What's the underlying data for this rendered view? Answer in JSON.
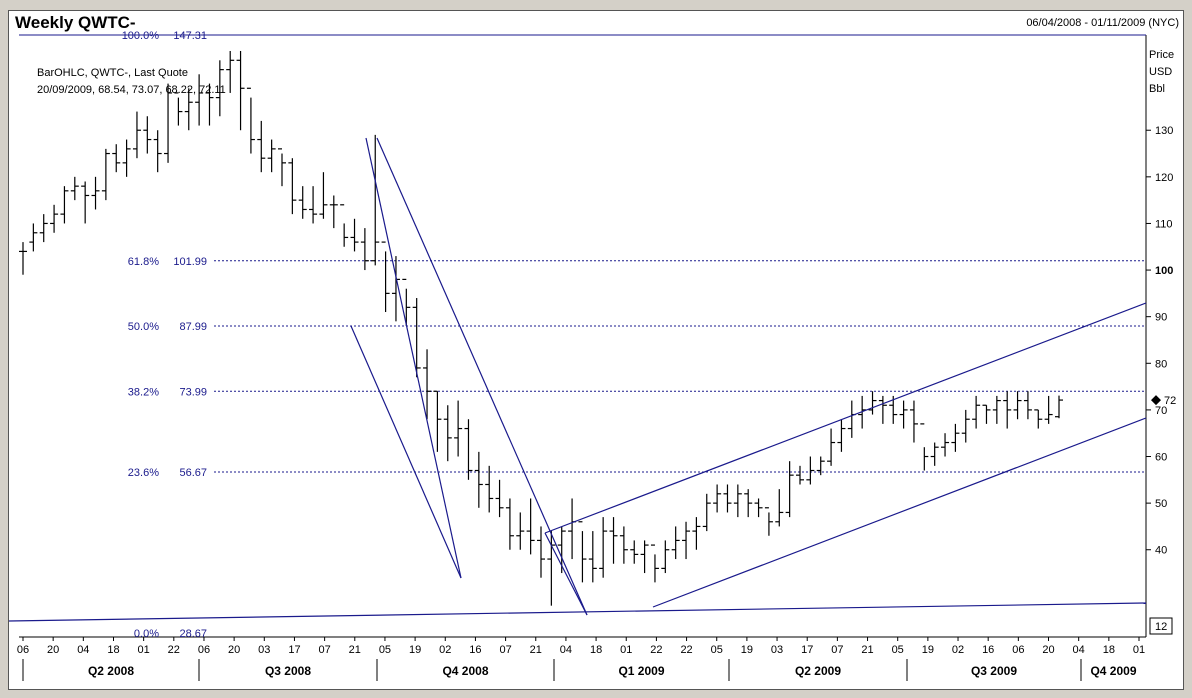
{
  "header": {
    "title": "Weekly QWTC-",
    "date_range": "06/04/2008 - 01/11/2009 (NYC)"
  },
  "legend": {
    "line1": "BarOHLC, QWTC-, Last Quote",
    "line2": "20/09/2009, 68.54, 73.07, 68.22, 72.11"
  },
  "axis": {
    "unit_line1": "Price",
    "unit_line2": "USD",
    "unit_line3": "Bbl",
    "last_price_label": "72",
    "bottom_box_label": "12"
  },
  "colors": {
    "lines": "#1a1a8c",
    "bars": "#000000",
    "background": "#ffffff",
    "frame": "#d4d0c8"
  },
  "chart_data": {
    "type": "ohlc",
    "ylim": [
      26,
      150
    ],
    "yticks": [
      40,
      50,
      60,
      70,
      80,
      90,
      100,
      110,
      120,
      130
    ],
    "ytick_bold": 100,
    "fib_levels": [
      {
        "pct": "100.0%",
        "value": "147.31"
      },
      {
        "pct": "61.8%",
        "value": "101.99"
      },
      {
        "pct": "50.0%",
        "value": "87.99"
      },
      {
        "pct": "38.2%",
        "value": "73.99"
      },
      {
        "pct": "23.6%",
        "value": "56.67"
      },
      {
        "pct": "0.0%",
        "value": "28.67"
      }
    ],
    "x_tick_labels": [
      "06",
      "20",
      "04",
      "18",
      "01",
      "22",
      "06",
      "20",
      "03",
      "17",
      "07",
      "21",
      "05",
      "19",
      "02",
      "16",
      "07",
      "21",
      "04",
      "18",
      "01",
      "22",
      "22",
      "05",
      "19",
      "03",
      "17",
      "07",
      "21",
      "05",
      "19",
      "02",
      "16",
      "06",
      "20",
      "04",
      "18",
      "01"
    ],
    "quarters": [
      "Q2 2008",
      "Q3 2008",
      "Q4 2008",
      "Q1 2009",
      "Q2 2009",
      "Q3 2009",
      "Q4 2009"
    ],
    "bars": [
      [
        104,
        106,
        99,
        104
      ],
      [
        106,
        110,
        104,
        108
      ],
      [
        108,
        112,
        106,
        110
      ],
      [
        110,
        114,
        108,
        112
      ],
      [
        112,
        118,
        110,
        117
      ],
      [
        117,
        120,
        115,
        118
      ],
      [
        118,
        119,
        110,
        116
      ],
      [
        116,
        120,
        113,
        117
      ],
      [
        117,
        126,
        115,
        125
      ],
      [
        125,
        127,
        121,
        123
      ],
      [
        123,
        128,
        120,
        126
      ],
      [
        126,
        134,
        124,
        130
      ],
      [
        130,
        133,
        125,
        128
      ],
      [
        128,
        130,
        121,
        125
      ],
      [
        125,
        140,
        123,
        138
      ],
      [
        138,
        137,
        131,
        134
      ],
      [
        134,
        139,
        130,
        136
      ],
      [
        136,
        142,
        131,
        138
      ],
      [
        138,
        140,
        131,
        137
      ],
      [
        137,
        145,
        133,
        143
      ],
      [
        143,
        147,
        138,
        145
      ],
      [
        145,
        147,
        130,
        139
      ],
      [
        139,
        137,
        125,
        128
      ],
      [
        128,
        132,
        121,
        124
      ],
      [
        124,
        128,
        121,
        126
      ],
      [
        126,
        125,
        118,
        123
      ],
      [
        123,
        124,
        112,
        115
      ],
      [
        115,
        118,
        111,
        113
      ],
      [
        113,
        118,
        110,
        112
      ],
      [
        112,
        121,
        111,
        114
      ],
      [
        114,
        116,
        109,
        114
      ],
      [
        114,
        110,
        105,
        107
      ],
      [
        107,
        111,
        104,
        106
      ],
      [
        106,
        109,
        100,
        102
      ],
      [
        102,
        129,
        101,
        106
      ],
      [
        106,
        104,
        91,
        95
      ],
      [
        95,
        103,
        89,
        98
      ],
      [
        98,
        96,
        88,
        92
      ],
      [
        92,
        94,
        77,
        79
      ],
      [
        79,
        83,
        68,
        74
      ],
      [
        74,
        74,
        61,
        68
      ],
      [
        68,
        71,
        59,
        64
      ],
      [
        64,
        72,
        60,
        66
      ],
      [
        66,
        68,
        55,
        57
      ],
      [
        57,
        61,
        49,
        54
      ],
      [
        54,
        58,
        48,
        51
      ],
      [
        51,
        55,
        47,
        49
      ],
      [
        49,
        51,
        40,
        43
      ],
      [
        43,
        48,
        40,
        44
      ],
      [
        44,
        51,
        39,
        42
      ],
      [
        42,
        45,
        34,
        38
      ],
      [
        38,
        44,
        28,
        41
      ],
      [
        41,
        45,
        35,
        44
      ],
      [
        44,
        51,
        38,
        46
      ],
      [
        46,
        44,
        33,
        38
      ],
      [
        38,
        44,
        33,
        36
      ],
      [
        36,
        47,
        34,
        44
      ],
      [
        44,
        47,
        37,
        43
      ],
      [
        43,
        45,
        37,
        40
      ],
      [
        40,
        42,
        37,
        39
      ],
      [
        39,
        42,
        35,
        41
      ],
      [
        41,
        39,
        33,
        36
      ],
      [
        36,
        42,
        35,
        40
      ],
      [
        40,
        45,
        38,
        42
      ],
      [
        42,
        46,
        38,
        44
      ],
      [
        44,
        47,
        40,
        45
      ],
      [
        45,
        52,
        44,
        50
      ],
      [
        50,
        54,
        48,
        52
      ],
      [
        52,
        54,
        48,
        50
      ],
      [
        50,
        54,
        47,
        52
      ],
      [
        52,
        53,
        47,
        50
      ],
      [
        50,
        51,
        47,
        49
      ],
      [
        49,
        48,
        43,
        46
      ],
      [
        46,
        53,
        45,
        48
      ],
      [
        48,
        59,
        47,
        56
      ],
      [
        56,
        58,
        54,
        55
      ],
      [
        55,
        60,
        54,
        57
      ],
      [
        57,
        60,
        56,
        59
      ],
      [
        59,
        66,
        58,
        63
      ],
      [
        63,
        68,
        61,
        66
      ],
      [
        66,
        72,
        64,
        69
      ],
      [
        69,
        73,
        66,
        70
      ],
      [
        70,
        74,
        69,
        72
      ],
      [
        72,
        73,
        67,
        71
      ],
      [
        71,
        73,
        67,
        69
      ],
      [
        69,
        72,
        66,
        70
      ],
      [
        70,
        72,
        63,
        67
      ],
      [
        67,
        62,
        57,
        60
      ],
      [
        60,
        63,
        58,
        62
      ],
      [
        62,
        65,
        60,
        63
      ],
      [
        63,
        67,
        61,
        65
      ],
      [
        65,
        70,
        63,
        68
      ],
      [
        68,
        73,
        66,
        71
      ],
      [
        71,
        71,
        67,
        70
      ],
      [
        70,
        73,
        67,
        72
      ],
      [
        72,
        74,
        66,
        70
      ],
      [
        70,
        74,
        68,
        72
      ],
      [
        72,
        74,
        68,
        70
      ],
      [
        70,
        70,
        66,
        68
      ],
      [
        68,
        73,
        67,
        69
      ],
      [
        68.54,
        73.07,
        68.22,
        72.11
      ]
    ]
  }
}
